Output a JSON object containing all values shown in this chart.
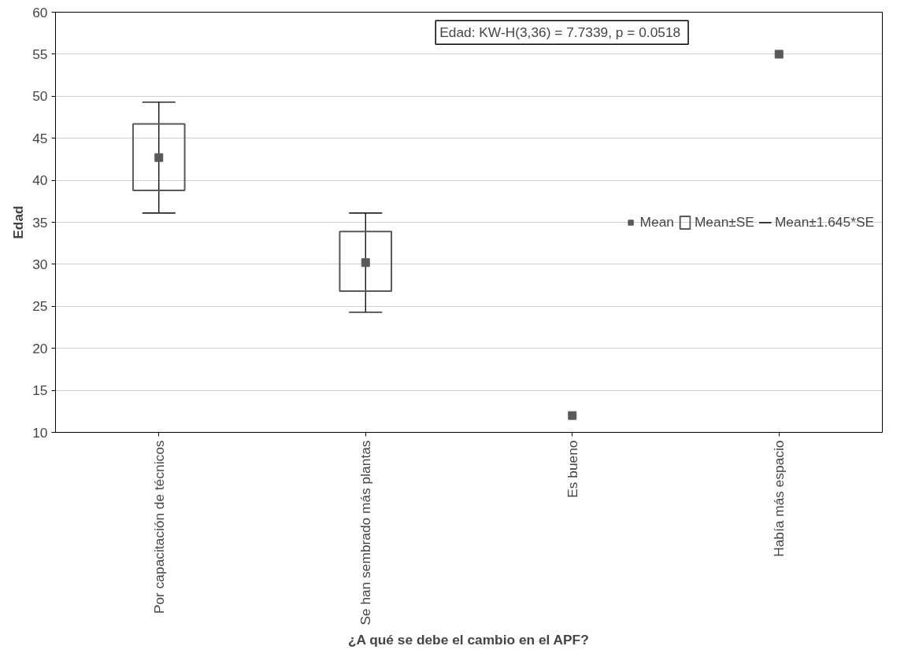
{
  "chart_data": {
    "type": "bar",
    "xlabel": "¿A qué se debe el cambio en el APF?",
    "ylabel": "Edad",
    "categories": [
      "Por capacitación de técnicos",
      "Se han sembrado más plantas",
      "Es bueno",
      "Había más espacio"
    ],
    "ylim": [
      10,
      60
    ],
    "yticks": [
      10,
      15,
      20,
      25,
      30,
      35,
      40,
      45,
      50,
      55,
      60
    ],
    "grid": "y",
    "legend": "right",
    "annotations": [
      "Edad:  KW-H(3,36) = 7.7339, p = 0.0518",
      "Mean±1.645*SE"
    ],
    "series": [
      {
        "name": "Mean",
        "type": "scatter",
        "marker": "square",
        "color": "#595959",
        "values": [
          42.7,
          30.2,
          12.0,
          55.0
        ],
        "errors": [
          6.6,
          5.9,
          null,
          null
        ]
      },
      {
        "name": "Mean±SE",
        "color": "#595959",
        "base": [
          38.8,
          26.8,
          null,
          null
        ],
        "values": [
          7.9,
          7.1,
          null,
          null
        ]
      }
    ]
  }
}
